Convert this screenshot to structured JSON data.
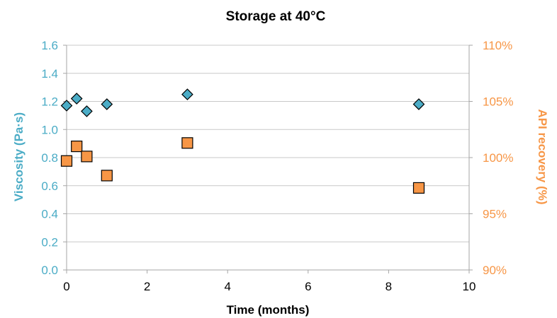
{
  "chart_data": {
    "type": "scatter",
    "title": "Storage at 40°C",
    "xlabel": "Time (months)",
    "ylabel": "Viscosity (Pa·s)",
    "y2label": "API recovery (%)",
    "xlim": [
      0,
      10
    ],
    "ylim": [
      0,
      1.6
    ],
    "y2lim": [
      90,
      110
    ],
    "x_ticks": [
      "0",
      "2",
      "4",
      "6",
      "8",
      "10"
    ],
    "y_ticks": [
      "0.0",
      "0.2",
      "0.4",
      "0.6",
      "0.8",
      "1.0",
      "1.2",
      "1.4",
      "1.6"
    ],
    "y2_ticks": [
      "90%",
      "95%",
      "100%",
      "105%",
      "110%"
    ],
    "grid": true,
    "colors": {
      "viscosity": "#4bacc6",
      "api": "#f79646",
      "viscosity_text": "#4bacc6",
      "api_text": "#f79646",
      "grid": "#c8c8c8"
    },
    "series": [
      {
        "axis": "left",
        "marker": "diamond",
        "x": [
          0,
          0.25,
          0.5,
          1,
          3,
          8.75
        ],
        "y": [
          1.17,
          1.22,
          1.13,
          1.18,
          1.25,
          1.18
        ]
      },
      {
        "axis": "right",
        "marker": "square",
        "x": [
          0,
          0.25,
          0.5,
          1,
          3,
          8.75
        ],
        "y": [
          99.7,
          101.0,
          100.1,
          98.4,
          101.3,
          97.3
        ]
      }
    ]
  }
}
